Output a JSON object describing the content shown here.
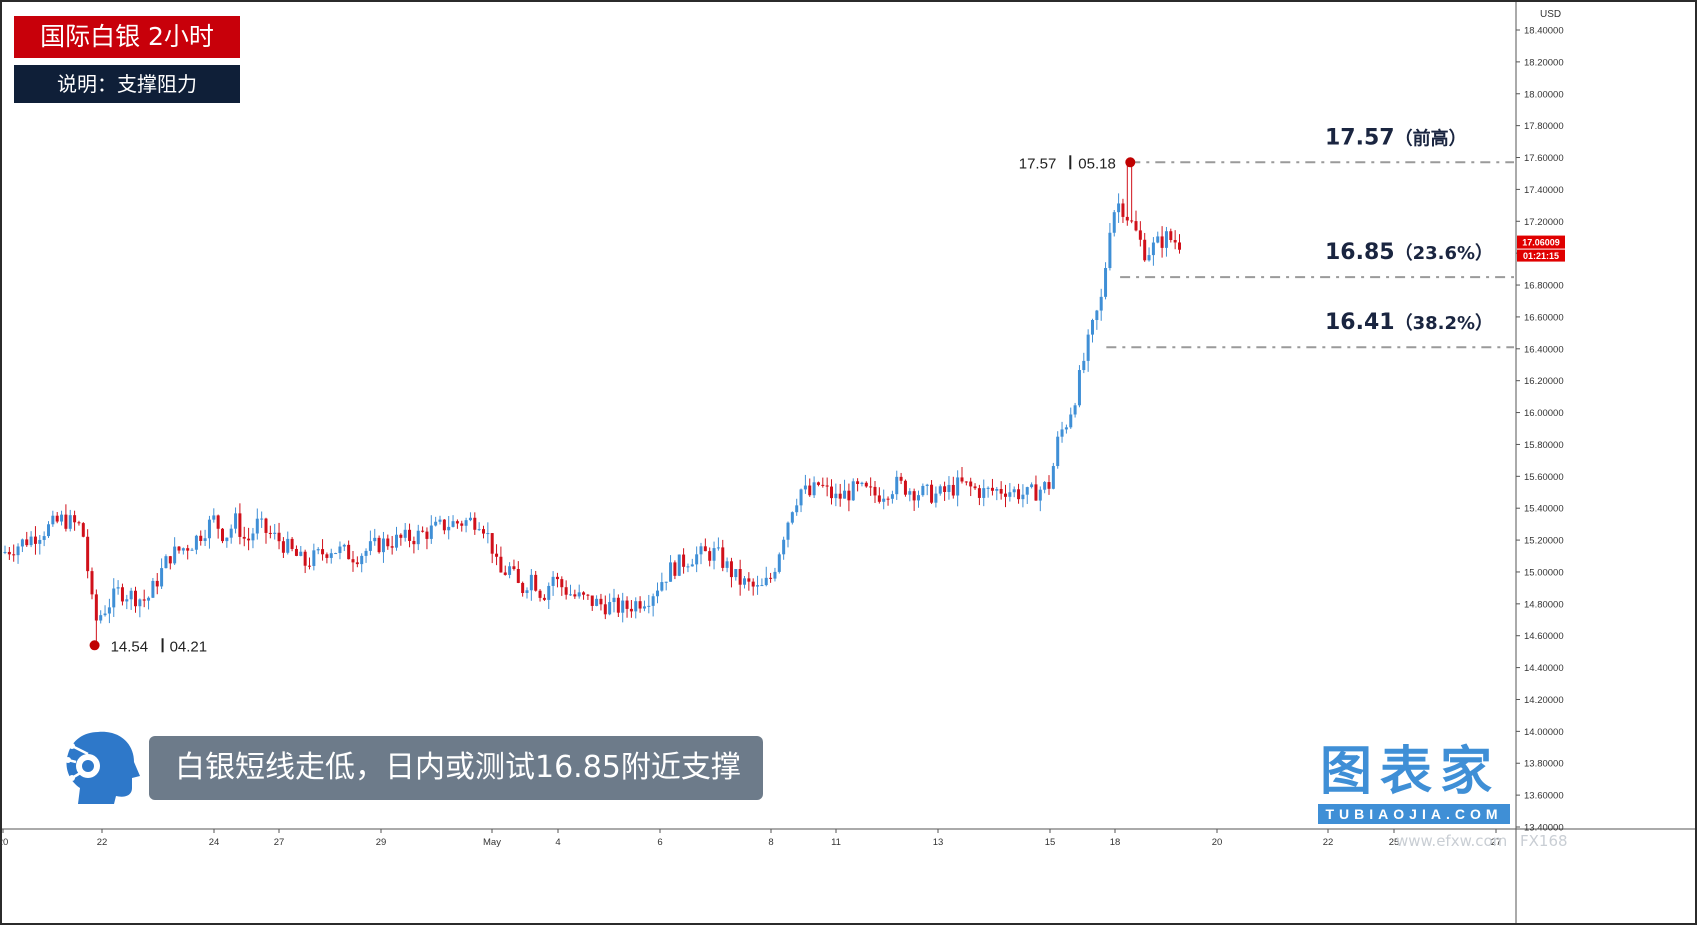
{
  "header": {
    "title": "国际白银 2小时",
    "subtitle": "说明：支撑阻力"
  },
  "summary": "白银短线走低，日内或测试16.85附近支撑",
  "logo": {
    "main": "图表家",
    "sub": "TUBIAOJIA.COM"
  },
  "watermarks": [
    "www.efxw.com",
    "FX168"
  ],
  "colors": {
    "up": "#3f8fd6",
    "down": "#d0101a",
    "marker": "#c00000",
    "level_line": "#9a9a9a",
    "price_tag": "#e00000"
  },
  "chart_data": {
    "type": "candlestick",
    "currency_label": "USD",
    "ylim": [
      13.37,
      18.53
    ],
    "y_ticks": [
      "18.40000",
      "18.20000",
      "18.00000",
      "17.80000",
      "17.60000",
      "17.40000",
      "17.20000",
      "17.00000",
      "16.80000",
      "16.60000",
      "16.40000",
      "16.20000",
      "16.00000",
      "15.80000",
      "15.60000",
      "15.40000",
      "15.20000",
      "15.00000",
      "14.80000",
      "14.60000",
      "14.40000",
      "14.20000",
      "14.00000",
      "13.80000",
      "13.60000",
      "13.40000"
    ],
    "x_ticks": [
      {
        "label": "20",
        "day": 20.0
      },
      {
        "label": "22",
        "day": 22.0
      },
      {
        "label": "24",
        "day": 24.0
      },
      {
        "label": "27",
        "day": 27.0
      },
      {
        "label": "29",
        "day": 29.0
      },
      {
        "label": "May",
        "day": 31.0
      },
      {
        "label": "4",
        "day": 34.0
      },
      {
        "label": "6",
        "day": 36.0
      },
      {
        "label": "8",
        "day": 38.0
      },
      {
        "label": "11",
        "day": 41.0
      },
      {
        "label": "13",
        "day": 43.0
      },
      {
        "label": "15",
        "day": 45.0
      },
      {
        "label": "18",
        "day": 48.0
      },
      {
        "label": "20",
        "day": 50.0
      },
      {
        "label": "22",
        "day": 52.0
      },
      {
        "label": "25",
        "day": 55.0
      },
      {
        "label": "27",
        "day": 57.0
      }
    ],
    "current_price": {
      "value": 17.06009,
      "label": "17.06009",
      "countdown": "01:21:15"
    },
    "levels": [
      {
        "value": 17.57,
        "label_value": "17.57",
        "label_note": "（前高）",
        "line_start_day": 48.3
      },
      {
        "value": 16.85,
        "label_value": "16.85",
        "label_note": "（23.6%）",
        "line_start_day": 48.1
      },
      {
        "value": 16.41,
        "label_value": "16.41",
        "label_note": "（38.2%）",
        "line_start_day": 47.6
      }
    ],
    "extremes": [
      {
        "value": 17.57,
        "day": 48.3,
        "price_label": "17.57",
        "date_label": "05.18",
        "side": "left"
      },
      {
        "value": 14.54,
        "day": 21.85,
        "price_label": "14.54",
        "date_label": "04.21",
        "side": "right"
      }
    ],
    "anchors": [
      [
        20.0,
        15.12
      ],
      [
        20.6,
        15.22
      ],
      [
        21.2,
        15.33
      ],
      [
        21.6,
        15.28
      ],
      [
        21.85,
        14.68
      ],
      [
        22.3,
        14.88
      ],
      [
        22.8,
        14.82
      ],
      [
        23.2,
        15.1
      ],
      [
        23.6,
        15.18
      ],
      [
        24.0,
        15.33
      ],
      [
        24.5,
        15.22
      ],
      [
        25.0,
        15.32
      ],
      [
        25.5,
        15.18
      ],
      [
        26.0,
        15.3
      ],
      [
        26.5,
        15.24
      ],
      [
        27.0,
        15.2
      ],
      [
        27.5,
        15.05
      ],
      [
        28.0,
        15.15
      ],
      [
        28.5,
        15.1
      ],
      [
        29.0,
        15.18
      ],
      [
        29.6,
        15.22
      ],
      [
        30.2,
        15.3
      ],
      [
        30.8,
        15.33
      ],
      [
        31.0,
        15.16
      ],
      [
        31.3,
        14.98
      ],
      [
        31.8,
        15.02
      ],
      [
        32.3,
        14.88
      ],
      [
        32.8,
        14.98
      ],
      [
        33.3,
        14.85
      ],
      [
        33.8,
        14.98
      ],
      [
        34.3,
        14.85
      ],
      [
        34.8,
        14.8
      ],
      [
        35.3,
        14.77
      ],
      [
        35.8,
        14.85
      ],
      [
        36.2,
        15.02
      ],
      [
        36.6,
        15.1
      ],
      [
        37.0,
        15.12
      ],
      [
        37.4,
        14.95
      ],
      [
        37.8,
        14.88
      ],
      [
        38.2,
        15.05
      ],
      [
        38.6,
        15.25
      ],
      [
        39.0,
        15.42
      ],
      [
        39.4,
        15.52
      ],
      [
        39.8,
        15.48
      ],
      [
        40.2,
        15.55
      ],
      [
        40.6,
        15.5
      ],
      [
        41.0,
        15.46
      ],
      [
        41.4,
        15.52
      ],
      [
        41.8,
        15.48
      ],
      [
        42.2,
        15.55
      ],
      [
        42.6,
        15.5
      ],
      [
        43.0,
        15.48
      ],
      [
        43.4,
        15.55
      ],
      [
        43.8,
        15.5
      ],
      [
        44.2,
        15.52
      ],
      [
        44.6,
        15.48
      ],
      [
        45.0,
        15.55
      ],
      [
        45.4,
        15.85
      ],
      [
        45.8,
        15.95
      ],
      [
        46.2,
        16.12
      ],
      [
        46.6,
        16.35
      ],
      [
        47.0,
        16.55
      ],
      [
        47.4,
        16.72
      ],
      [
        47.8,
        17.22
      ],
      [
        48.1,
        17.32
      ],
      [
        48.3,
        17.2
      ],
      [
        48.6,
        17.0
      ],
      [
        49.0,
        17.1
      ],
      [
        49.3,
        17.06
      ]
    ]
  }
}
